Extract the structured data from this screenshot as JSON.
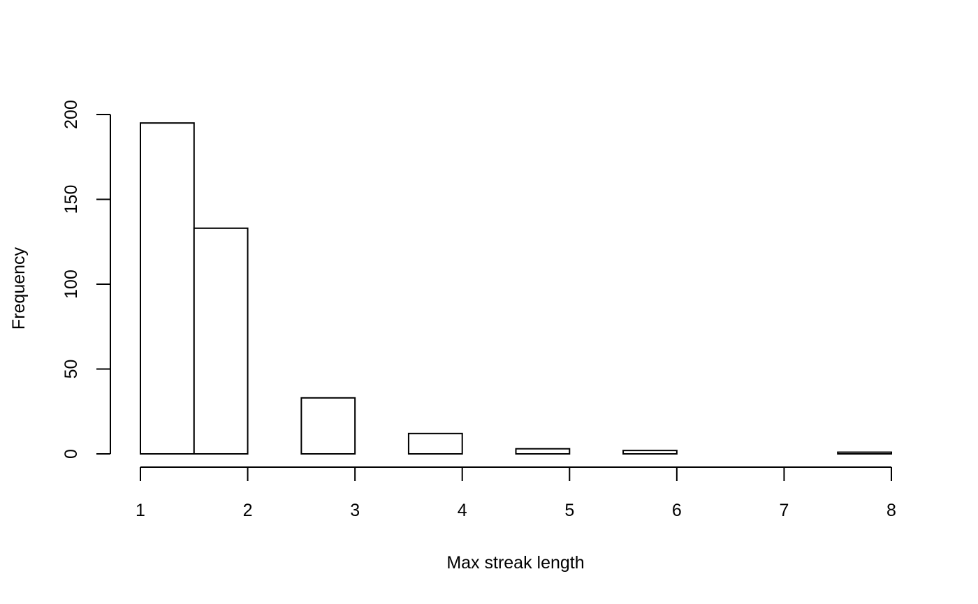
{
  "chart_data": {
    "type": "bar",
    "subtype": "histogram",
    "title": "",
    "xlabel": "Max streak length",
    "ylabel": "Frequency",
    "bins": [
      {
        "start": 1.0,
        "end": 1.5,
        "count": 195
      },
      {
        "start": 1.5,
        "end": 2.0,
        "count": 133
      },
      {
        "start": 2.0,
        "end": 2.5,
        "count": 0
      },
      {
        "start": 2.5,
        "end": 3.0,
        "count": 33
      },
      {
        "start": 3.0,
        "end": 3.5,
        "count": 0
      },
      {
        "start": 3.5,
        "end": 4.0,
        "count": 12
      },
      {
        "start": 4.0,
        "end": 4.5,
        "count": 0
      },
      {
        "start": 4.5,
        "end": 5.0,
        "count": 3
      },
      {
        "start": 5.0,
        "end": 5.5,
        "count": 0
      },
      {
        "start": 5.5,
        "end": 6.0,
        "count": 2
      },
      {
        "start": 6.0,
        "end": 6.5,
        "count": 0
      },
      {
        "start": 6.5,
        "end": 7.0,
        "count": 0
      },
      {
        "start": 7.0,
        "end": 7.5,
        "count": 0
      },
      {
        "start": 7.5,
        "end": 8.0,
        "count": 1
      }
    ],
    "xlim": [
      1,
      8
    ],
    "ylim": [
      0,
      200
    ],
    "xticks": [
      1,
      2,
      3,
      4,
      5,
      6,
      7,
      8
    ],
    "yticks": [
      0,
      50,
      100,
      150,
      200
    ],
    "xtick_labels": [
      "1",
      "2",
      "3",
      "4",
      "5",
      "6",
      "7",
      "8"
    ],
    "ytick_labels": [
      "0",
      "50",
      "100",
      "150",
      "200"
    ],
    "grid": false,
    "bar_fill": "#ffffff",
    "bar_stroke": "#000000"
  }
}
